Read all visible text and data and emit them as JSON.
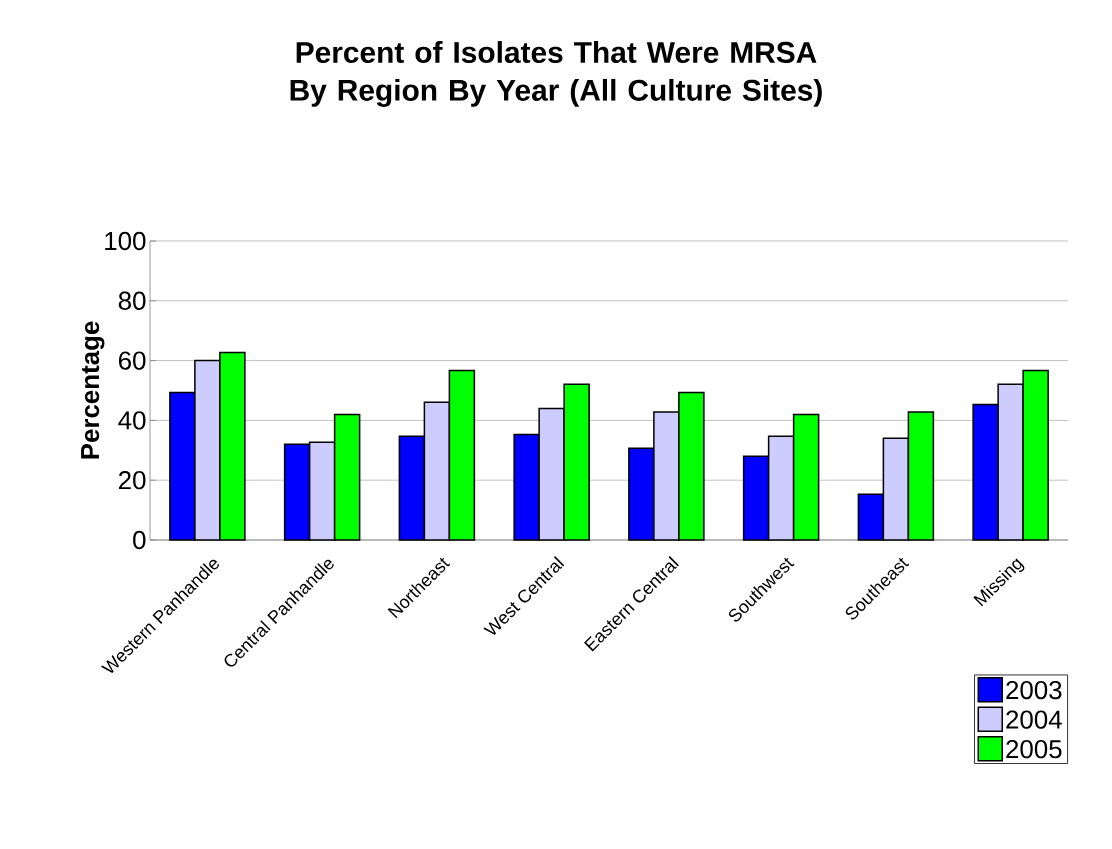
{
  "chart_data": {
    "type": "bar",
    "title": "Percent of Isolates That Were MRSA By Region By Year (All Culture Sites)",
    "ylabel": "Percentage",
    "categories": [
      "Western Panhandle",
      "Central Panhandle",
      "Northeast",
      "West Central",
      "Eastern Central",
      "Southwest",
      "Southeast",
      "Missing"
    ],
    "series": [
      {
        "name": "2003",
        "color": "#0000ff",
        "values": [
          49.3,
          32,
          34.7,
          35.3,
          30.7,
          28,
          15.3,
          45.3
        ]
      },
      {
        "name": "2004",
        "color": "#ccccff",
        "values": [
          60,
          32.7,
          46.1,
          44,
          42.8,
          34.7,
          34,
          52.1
        ]
      },
      {
        "name": "2005",
        "color": "#00ff00",
        "values": [
          62.7,
          42,
          56.7,
          52.1,
          49.3,
          42,
          42.8,
          56.7
        ]
      }
    ],
    "ylim": [
      0,
      100
    ],
    "yticks": [
      0,
      20,
      40,
      60,
      80,
      100
    ],
    "grid": "y",
    "legend": "bottom right"
  }
}
